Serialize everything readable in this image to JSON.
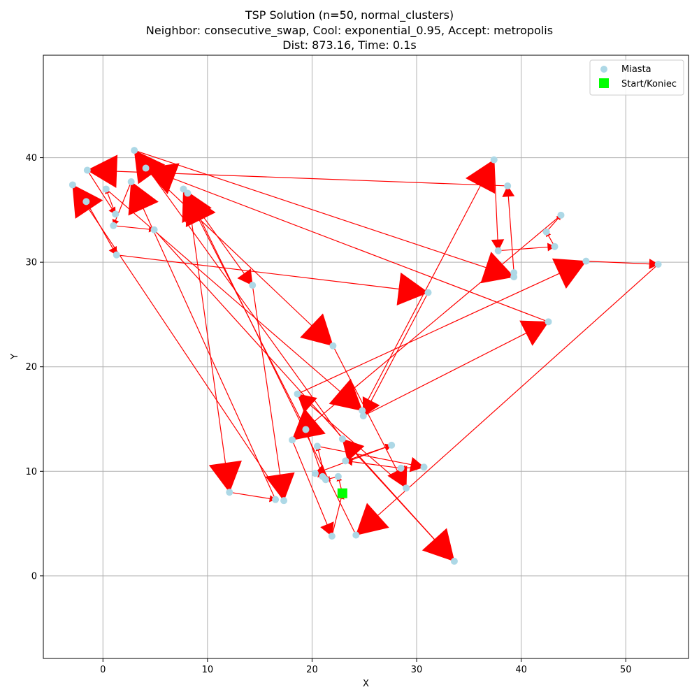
{
  "chart_data": {
    "type": "scatter",
    "title_lines": [
      "TSP Solution (n=50, normal_clusters)",
      "Neighbor: consecutive_swap, Cool: exponential_0.95, Accept: metropolis",
      "Dist: 873.16, Time: 0.1s"
    ],
    "xlabel": "X",
    "ylabel": "Y",
    "xlim": [
      -5.7,
      56
    ],
    "ylim": [
      -7.9,
      49.8
    ],
    "xticks": [
      0,
      10,
      20,
      30,
      40,
      50
    ],
    "yticks": [
      0,
      10,
      20,
      30,
      40
    ],
    "grid": true,
    "legend_placement": "top-right",
    "legend": [
      {
        "label": "Miasta",
        "marker": "circle",
        "color": "#add8e6"
      },
      {
        "label": "Start/Koniec",
        "marker": "square",
        "color": "#00ff00"
      }
    ],
    "colors": {
      "cities": "#add8e6",
      "start": "#00ff00",
      "route": "#ff0000"
    },
    "start": [
      22.9,
      7.9
    ],
    "cities": [
      [
        22.9,
        7.9
      ],
      [
        22.5,
        9.5
      ],
      [
        21.0,
        9.5
      ],
      [
        21.3,
        9.2
      ],
      [
        20.3,
        9.8
      ],
      [
        21.9,
        3.8
      ],
      [
        24.2,
        3.9
      ],
      [
        33.6,
        1.4
      ],
      [
        17.3,
        7.2
      ],
      [
        16.5,
        7.3
      ],
      [
        12.1,
        8.0
      ],
      [
        18.1,
        13.0
      ],
      [
        18.6,
        17.4
      ],
      [
        19.4,
        14.0
      ],
      [
        20.5,
        12.4
      ],
      [
        22.9,
        13.1
      ],
      [
        23.2,
        11.0
      ],
      [
        24.8,
        15.8
      ],
      [
        24.9,
        15.3
      ],
      [
        22.0,
        22.0
      ],
      [
        27.6,
        12.5
      ],
      [
        28.5,
        10.3
      ],
      [
        29.0,
        8.4
      ],
      [
        30.7,
        10.4
      ],
      [
        31.1,
        27.1
      ],
      [
        14.3,
        27.8
      ],
      [
        42.6,
        24.3
      ],
      [
        39.3,
        28.6
      ],
      [
        39.3,
        29.0
      ],
      [
        46.2,
        30.1
      ],
      [
        53.1,
        29.8
      ],
      [
        42.4,
        32.9
      ],
      [
        43.2,
        31.5
      ],
      [
        43.8,
        34.5
      ],
      [
        37.8,
        31.1
      ],
      [
        38.7,
        37.3
      ],
      [
        37.4,
        39.8
      ],
      [
        3.0,
        40.7
      ],
      [
        4.1,
        39.0
      ],
      [
        -1.5,
        38.8
      ],
      [
        2.7,
        37.7
      ],
      [
        0.3,
        37.0
      ],
      [
        -2.9,
        37.4
      ],
      [
        7.7,
        37.0
      ],
      [
        8.1,
        36.6
      ],
      [
        -1.6,
        35.8
      ],
      [
        1.2,
        34.6
      ],
      [
        1.0,
        33.5
      ],
      [
        4.9,
        33.1
      ],
      [
        1.3,
        30.7
      ]
    ],
    "route": [
      0,
      1,
      3,
      14,
      23,
      21,
      16,
      20,
      4,
      2,
      13,
      43,
      25,
      8,
      42,
      45,
      49,
      24,
      18,
      26,
      38,
      19,
      22,
      12,
      29,
      30,
      6,
      44,
      10,
      9,
      40,
      47,
      48,
      7,
      15,
      37,
      27,
      28,
      35,
      39,
      46,
      41,
      17,
      36,
      34,
      32,
      31,
      33,
      11,
      5,
      0
    ]
  }
}
